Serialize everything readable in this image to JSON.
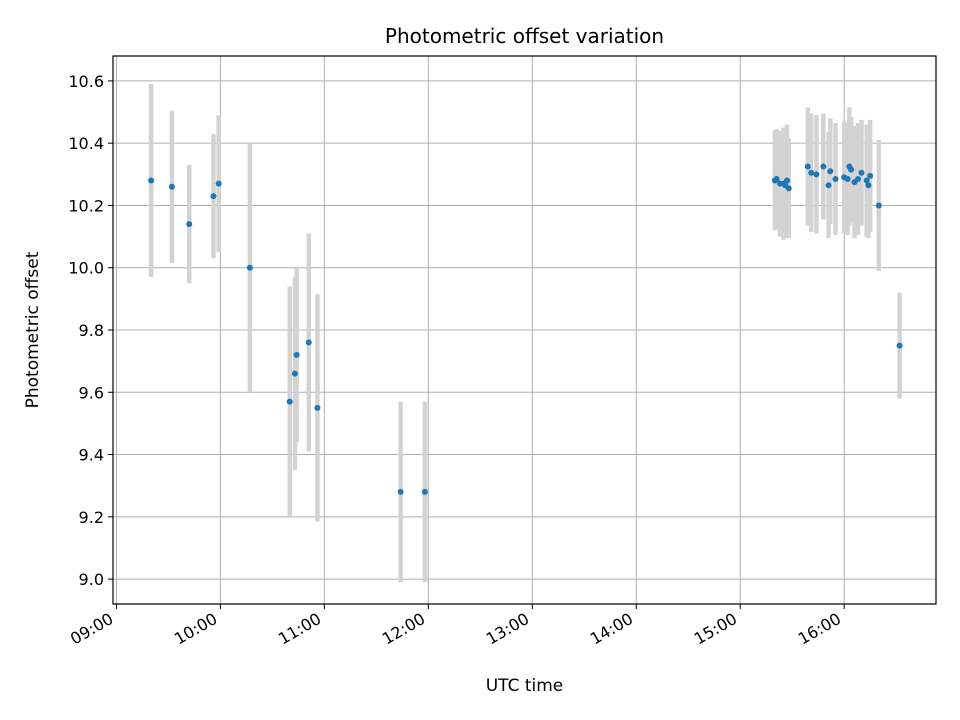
{
  "chart_data": {
    "type": "scatter",
    "title": "Photometric offset variation",
    "xlabel": "UTC time",
    "ylabel": "Photometric offset",
    "x_ticks": [
      "09:00",
      "10:00",
      "11:00",
      "12:00",
      "13:00",
      "14:00",
      "15:00",
      "16:00"
    ],
    "y_ticks": [
      "9.0",
      "9.2",
      "9.4",
      "9.6",
      "9.8",
      "10.0",
      "10.2",
      "10.4",
      "10.6"
    ],
    "xlim": [
      "08:58",
      "16:53"
    ],
    "ylim": [
      8.92,
      10.68
    ],
    "grid": true,
    "colors": {
      "point": "#1f77b4",
      "errorbar": "#d3d3d3",
      "grid": "#b0b0b0"
    },
    "points": [
      {
        "t": "09:20",
        "y": 10.28,
        "err": 0.31
      },
      {
        "t": "09:32",
        "y": 10.26,
        "err": 0.245
      },
      {
        "t": "09:42",
        "y": 10.14,
        "err": 0.19
      },
      {
        "t": "09:56",
        "y": 10.23,
        "err": 0.2
      },
      {
        "t": "09:59",
        "y": 10.27,
        "err": 0.22
      },
      {
        "t": "10:17",
        "y": 10.0,
        "err": 0.4
      },
      {
        "t": "10:40",
        "y": 9.57,
        "err": 0.37
      },
      {
        "t": "10:43",
        "y": 9.66,
        "err": 0.31
      },
      {
        "t": "10:44",
        "y": 9.72,
        "err": 0.28
      },
      {
        "t": "10:51",
        "y": 9.76,
        "err": 0.35
      },
      {
        "t": "10:56",
        "y": 9.55,
        "err": 0.365
      },
      {
        "t": "11:44",
        "y": 9.28,
        "err": 0.29
      },
      {
        "t": "11:58",
        "y": 9.28,
        "err": 0.29
      },
      {
        "t": "15:20",
        "y": 10.28,
        "err": 0.16
      },
      {
        "t": "15:21",
        "y": 10.285,
        "err": 0.16
      },
      {
        "t": "15:23",
        "y": 10.27,
        "err": 0.17
      },
      {
        "t": "15:25",
        "y": 10.27,
        "err": 0.18
      },
      {
        "t": "15:26",
        "y": 10.265,
        "err": 0.17
      },
      {
        "t": "15:27",
        "y": 10.28,
        "err": 0.18
      },
      {
        "t": "15:28",
        "y": 10.255,
        "err": 0.16
      },
      {
        "t": "15:39",
        "y": 10.325,
        "err": 0.19
      },
      {
        "t": "15:41",
        "y": 10.305,
        "err": 0.19
      },
      {
        "t": "15:44",
        "y": 10.3,
        "err": 0.19
      },
      {
        "t": "15:48",
        "y": 10.325,
        "err": 0.17
      },
      {
        "t": "15:51",
        "y": 10.265,
        "err": 0.17
      },
      {
        "t": "15:52",
        "y": 10.31,
        "err": 0.17
      },
      {
        "t": "15:55",
        "y": 10.285,
        "err": 0.18
      },
      {
        "t": "16:00",
        "y": 10.29,
        "err": 0.18
      },
      {
        "t": "16:02",
        "y": 10.285,
        "err": 0.18
      },
      {
        "t": "16:03",
        "y": 10.325,
        "err": 0.19
      },
      {
        "t": "16:04",
        "y": 10.315,
        "err": 0.17
      },
      {
        "t": "16:06",
        "y": 10.275,
        "err": 0.18
      },
      {
        "t": "16:08",
        "y": 10.285,
        "err": 0.18
      },
      {
        "t": "16:10",
        "y": 10.305,
        "err": 0.17
      },
      {
        "t": "16:13",
        "y": 10.28,
        "err": 0.18
      },
      {
        "t": "16:14",
        "y": 10.265,
        "err": 0.17
      },
      {
        "t": "16:15",
        "y": 10.295,
        "err": 0.18
      },
      {
        "t": "16:20",
        "y": 10.2,
        "err": 0.21
      },
      {
        "t": "16:32",
        "y": 9.75,
        "err": 0.17
      }
    ]
  }
}
